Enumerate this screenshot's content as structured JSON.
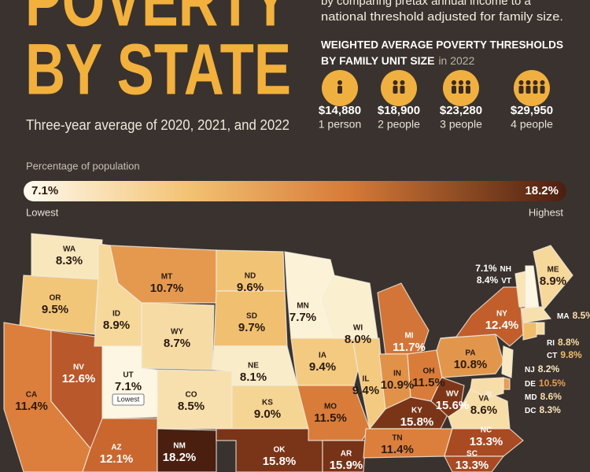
{
  "header": {
    "title_lines": [
      "POVERTY",
      "BY STATE"
    ],
    "subtitle": "Three-year average of 2020, 2021, and 2022",
    "intro_lines": [
      "by comparing pretax annual income to a",
      "national threshold adjusted for family size."
    ]
  },
  "thresholds": {
    "heading_lines": [
      "WEIGHTED AVERAGE POVERTY THRESHOLDS",
      "BY FAMILY UNIT SIZE"
    ],
    "year_note": "in 2022",
    "items": [
      {
        "amount": "$14,880",
        "size": "1 person"
      },
      {
        "amount": "$18,900",
        "size": "2 people"
      },
      {
        "amount": "$23,280",
        "size": "3 people"
      },
      {
        "amount": "$29,950",
        "size": "4 people"
      }
    ]
  },
  "legend": {
    "label": "Percentage of population",
    "min": "7.1%",
    "max": "18.2%",
    "low_text": "Lowest",
    "high_text": "Highest"
  },
  "badge": "Lowest",
  "states": [
    {
      "abbr": "WA",
      "value": "8.3%",
      "color": "#f8e7bd"
    },
    {
      "abbr": "OR",
      "value": "9.5%",
      "color": "#f2c679"
    },
    {
      "abbr": "CA",
      "value": "11.4%",
      "color": "#dc7f3c"
    },
    {
      "abbr": "NV",
      "value": "12.6%",
      "color": "#b9582a"
    },
    {
      "abbr": "ID",
      "value": "8.9%",
      "color": "#f6d89b"
    },
    {
      "abbr": "MT",
      "value": "10.7%",
      "color": "#e4994f"
    },
    {
      "abbr": "WY",
      "value": "8.7%",
      "color": "#f6dca4"
    },
    {
      "abbr": "UT",
      "value": "7.1%",
      "color": "#fdf6e3"
    },
    {
      "abbr": "CO",
      "value": "8.5%",
      "color": "#f7e0ad"
    },
    {
      "abbr": "AZ",
      "value": "12.1%",
      "color": "#c9672f"
    },
    {
      "abbr": "NM",
      "value": "18.2%",
      "color": "#4a1f10"
    },
    {
      "abbr": "ND",
      "value": "9.6%",
      "color": "#f1c475"
    },
    {
      "abbr": "SD",
      "value": "9.7%",
      "color": "#f0c070"
    },
    {
      "abbr": "NE",
      "value": "8.1%",
      "color": "#f9ecc8"
    },
    {
      "abbr": "KS",
      "value": "9.0%",
      "color": "#f5d593"
    },
    {
      "abbr": "OK",
      "value": "15.8%",
      "color": "#7a3418"
    },
    {
      "abbr": "MN",
      "value": "7.7%",
      "color": "#fbf2d8"
    },
    {
      "abbr": "IA",
      "value": "9.4%",
      "color": "#f3ca80"
    },
    {
      "abbr": "MO",
      "value": "11.5%",
      "color": "#d97c3a"
    },
    {
      "abbr": "AR",
      "value": "15.9%",
      "color": "#773317"
    },
    {
      "abbr": "WI",
      "value": "8.0%",
      "color": "#faefcf"
    },
    {
      "abbr": "IL",
      "value": "9.4%",
      "color": "#f3ca80"
    },
    {
      "abbr": "MI",
      "value": "11.7%",
      "color": "#d37538"
    },
    {
      "abbr": "IN",
      "value": "10.9%",
      "color": "#e19249"
    },
    {
      "abbr": "OH",
      "value": "11.5%",
      "color": "#d97c3a"
    },
    {
      "abbr": "KY",
      "value": "15.8%",
      "color": "#7a3418"
    },
    {
      "abbr": "TN",
      "value": "11.4%",
      "color": "#dc7f3c"
    },
    {
      "abbr": "WV",
      "value": "15.6%",
      "color": "#7e3619"
    },
    {
      "abbr": "VA",
      "value": "8.6%",
      "color": "#f7dea8"
    },
    {
      "abbr": "NC",
      "value": "13.3%",
      "color": "#a84a22"
    },
    {
      "abbr": "SC",
      "value": "13.3%",
      "color": "#a84a22"
    },
    {
      "abbr": "PA",
      "value": "10.8%",
      "color": "#e2964c"
    },
    {
      "abbr": "NY",
      "value": "12.4%",
      "color": "#c15e2c"
    },
    {
      "abbr": "ME",
      "value": "8.9%",
      "color": "#f6d89b"
    },
    {
      "abbr": "NH",
      "value": "7.1%",
      "color": "#fdf6e3"
    },
    {
      "abbr": "VT",
      "value": "8.4%",
      "color": "#f8e4b5"
    },
    {
      "abbr": "MA",
      "value": "8.5%",
      "color": "#f7e0ad"
    },
    {
      "abbr": "RI",
      "value": "8.8%",
      "color": "#f6daa0"
    },
    {
      "abbr": "CT",
      "value": "9.8%",
      "color": "#efbd6c"
    },
    {
      "abbr": "NJ",
      "value": "8.2%",
      "color": "#f9e9c2"
    },
    {
      "abbr": "DE",
      "value": "10.5%",
      "color": "#e69d55"
    },
    {
      "abbr": "MD",
      "value": "8.6%",
      "color": "#f7dea8"
    },
    {
      "abbr": "DC",
      "value": "8.3%",
      "color": "#f8e7bd"
    }
  ]
}
